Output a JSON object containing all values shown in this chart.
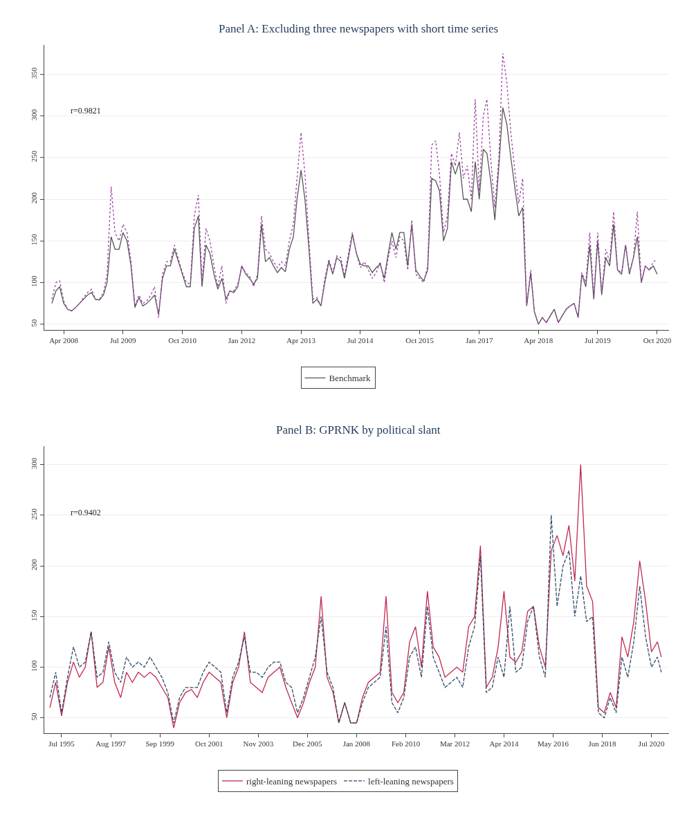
{
  "chart_data": [
    {
      "type": "line",
      "title": "Panel A: Excluding three newspapers with short time series",
      "annotations": [
        "r=0.9821"
      ],
      "grid": "y",
      "legend": "bottom",
      "marker": "none",
      "x": [
        "2008-01",
        "2008-02",
        "2008-03",
        "2008-04",
        "2008-05",
        "2008-06",
        "2008-07",
        "2008-08",
        "2008-09",
        "2008-10",
        "2008-11",
        "2008-12",
        "2009-01",
        "2009-02",
        "2009-03",
        "2009-04",
        "2009-05",
        "2009-06",
        "2009-07",
        "2009-08",
        "2009-09",
        "2009-10",
        "2009-11",
        "2009-12",
        "2010-01",
        "2010-02",
        "2010-03",
        "2010-04",
        "2010-05",
        "2010-06",
        "2010-07",
        "2010-08",
        "2010-09",
        "2010-10",
        "2010-11",
        "2010-12",
        "2011-01",
        "2011-02",
        "2011-03",
        "2011-04",
        "2011-05",
        "2011-06",
        "2011-07",
        "2011-08",
        "2011-09",
        "2011-10",
        "2011-11",
        "2011-12",
        "2012-01",
        "2012-02",
        "2012-03",
        "2012-04",
        "2012-05",
        "2012-06",
        "2012-07",
        "2012-08",
        "2012-09",
        "2012-10",
        "2012-11",
        "2012-12",
        "2013-01",
        "2013-02",
        "2013-03",
        "2013-04",
        "2013-05",
        "2013-06",
        "2013-07",
        "2013-08",
        "2013-09",
        "2013-10",
        "2013-11",
        "2013-12",
        "2014-01",
        "2014-02",
        "2014-03",
        "2014-04",
        "2014-05",
        "2014-06",
        "2014-07",
        "2014-08",
        "2014-09",
        "2014-10",
        "2014-11",
        "2014-12",
        "2015-01",
        "2015-02",
        "2015-03",
        "2015-04",
        "2015-05",
        "2015-06",
        "2015-07",
        "2015-08",
        "2015-09",
        "2015-10",
        "2015-11",
        "2015-12",
        "2016-01",
        "2016-02",
        "2016-03",
        "2016-04",
        "2016-05",
        "2016-06",
        "2016-07",
        "2016-08",
        "2016-09",
        "2016-10",
        "2016-11",
        "2016-12",
        "2017-01",
        "2017-02",
        "2017-03",
        "2017-04",
        "2017-05",
        "2017-06",
        "2017-07",
        "2017-08",
        "2017-09",
        "2017-10",
        "2017-11",
        "2017-12",
        "2018-01",
        "2018-02",
        "2018-03",
        "2018-04",
        "2018-05",
        "2018-06",
        "2018-07",
        "2018-08",
        "2018-09",
        "2018-10",
        "2018-11",
        "2018-12",
        "2019-01",
        "2019-02",
        "2019-03",
        "2019-04",
        "2019-05",
        "2019-06",
        "2019-07",
        "2019-08",
        "2019-09",
        "2019-10",
        "2019-11",
        "2019-12",
        "2020-01",
        "2020-02",
        "2020-03",
        "2020-04",
        "2020-05",
        "2020-06",
        "2020-07",
        "2020-08",
        "2020-09",
        "2020-10"
      ],
      "series": [
        {
          "name": "Benchmark",
          "color": "#555555",
          "line_style": "solid",
          "values": [
            75,
            90,
            95,
            75,
            68,
            66,
            70,
            75,
            80,
            85,
            88,
            80,
            79,
            85,
            100,
            155,
            140,
            140,
            160,
            150,
            120,
            70,
            82,
            72,
            75,
            80,
            85,
            62,
            105,
            120,
            120,
            140,
            125,
            110,
            95,
            95,
            165,
            180,
            95,
            145,
            135,
            110,
            92,
            105,
            80,
            90,
            88,
            95,
            120,
            110,
            105,
            98,
            105,
            170,
            125,
            130,
            120,
            112,
            118,
            113,
            140,
            155,
            200,
            235,
            200,
            140,
            75,
            80,
            72,
            100,
            125,
            110,
            130,
            125,
            105,
            130,
            158,
            135,
            122,
            120,
            120,
            112,
            118,
            122,
            105,
            135,
            160,
            140,
            160,
            160,
            120,
            170,
            115,
            108,
            102,
            115,
            225,
            222,
            210,
            150,
            165,
            245,
            230,
            245,
            200,
            200,
            185,
            245,
            200,
            260,
            255,
            220,
            175,
            240,
            310,
            290,
            250,
            215,
            180,
            190,
            72,
            112,
            65,
            50,
            58,
            52,
            60,
            68,
            52,
            60,
            68,
            72,
            75,
            58,
            110,
            95,
            145,
            80,
            150,
            85,
            130,
            120,
            170,
            115,
            110,
            145,
            110,
            130,
            155,
            100,
            120,
            115,
            120,
            110
          ]
        },
        {
          "color": "#9b3fa3",
          "line_style": "dotted",
          "values": [
            80,
            100,
            102,
            78,
            68,
            66,
            70,
            75,
            82,
            88,
            92,
            80,
            80,
            88,
            110,
            215,
            160,
            150,
            170,
            160,
            125,
            72,
            85,
            75,
            78,
            85,
            95,
            58,
            110,
            125,
            125,
            145,
            128,
            112,
            100,
            98,
            180,
            205,
            100,
            165,
            150,
            120,
            95,
            120,
            75,
            90,
            90,
            98,
            118,
            112,
            108,
            95,
            110,
            180,
            140,
            135,
            125,
            118,
            125,
            120,
            150,
            170,
            225,
            280,
            230,
            150,
            80,
            82,
            72,
            105,
            128,
            112,
            132,
            130,
            108,
            135,
            160,
            135,
            118,
            125,
            115,
            105,
            112,
            125,
            100,
            130,
            150,
            130,
            155,
            150,
            115,
            175,
            110,
            105,
            100,
            120,
            265,
            270,
            230,
            160,
            180,
            255,
            240,
            280,
            225,
            240,
            200,
            320,
            210,
            300,
            320,
            245,
            190,
            250,
            375,
            340,
            280,
            235,
            195,
            225,
            72,
            115,
            65,
            50,
            58,
            52,
            60,
            68,
            52,
            60,
            68,
            72,
            75,
            58,
            112,
            100,
            160,
            82,
            160,
            88,
            140,
            125,
            185,
            115,
            112,
            145,
            112,
            130,
            185,
            100,
            120,
            115,
            125,
            128
          ]
        }
      ],
      "xlim": [
        "2007-11",
        "2021-01"
      ],
      "xticks": [
        {
          "value": "2008-04",
          "label": "Apr 2008"
        },
        {
          "value": "2009-07",
          "label": "Jul 2009"
        },
        {
          "value": "2010-10",
          "label": "Oct 2010"
        },
        {
          "value": "2012-01",
          "label": "Jan 2012"
        },
        {
          "value": "2013-04",
          "label": "Apr 2013"
        },
        {
          "value": "2014-07",
          "label": "Jul 2014"
        },
        {
          "value": "2015-10",
          "label": "Oct 2015"
        },
        {
          "value": "2017-01",
          "label": "Jan 2017"
        },
        {
          "value": "2018-04",
          "label": "Apr 2018"
        },
        {
          "value": "2019-07",
          "label": "Jul 2019"
        },
        {
          "value": "2020-10",
          "label": "Oct 2020"
        }
      ],
      "ylim": [
        43,
        385
      ],
      "yticks": [
        50,
        100,
        150,
        200,
        250,
        300,
        350
      ]
    },
    {
      "type": "line",
      "title": "Panel B: GPRNK by political slant",
      "annotations": [
        "r=0.9402"
      ],
      "grid": "y",
      "legend": "bottom",
      "marker": "none",
      "x": [
        "1995-01",
        "1995-04",
        "1995-07",
        "1995-10",
        "1996-01",
        "1996-04",
        "1996-07",
        "1996-10",
        "1997-01",
        "1997-04",
        "1997-07",
        "1997-10",
        "1998-01",
        "1998-04",
        "1998-07",
        "1998-10",
        "1999-01",
        "1999-04",
        "1999-07",
        "1999-10",
        "2000-01",
        "2000-04",
        "2000-07",
        "2000-10",
        "2001-01",
        "2001-04",
        "2001-07",
        "2001-10",
        "2002-01",
        "2002-04",
        "2002-07",
        "2002-10",
        "2003-01",
        "2003-04",
        "2003-07",
        "2003-10",
        "2004-01",
        "2004-04",
        "2004-07",
        "2004-10",
        "2005-01",
        "2005-04",
        "2005-07",
        "2005-10",
        "2006-01",
        "2006-04",
        "2006-07",
        "2006-10",
        "2007-01",
        "2007-04",
        "2007-07",
        "2007-10",
        "2008-01",
        "2008-04",
        "2008-07",
        "2008-10",
        "2009-01",
        "2009-04",
        "2009-07",
        "2009-10",
        "2010-01",
        "2010-04",
        "2010-07",
        "2010-10",
        "2011-01",
        "2011-04",
        "2011-07",
        "2011-10",
        "2012-01",
        "2012-04",
        "2012-07",
        "2012-10",
        "2013-01",
        "2013-04",
        "2013-07",
        "2013-10",
        "2014-01",
        "2014-04",
        "2014-07",
        "2014-10",
        "2015-01",
        "2015-04",
        "2015-07",
        "2015-10",
        "2016-01",
        "2016-04",
        "2016-07",
        "2016-10",
        "2017-01",
        "2017-04",
        "2017-07",
        "2017-10",
        "2018-01",
        "2018-04",
        "2018-07",
        "2018-10",
        "2019-01",
        "2019-04",
        "2019-07",
        "2019-10",
        "2020-01",
        "2020-04",
        "2020-07",
        "2020-10",
        "2020-12"
      ],
      "series": [
        {
          "name": "right-leaning newspapers",
          "color": "#c0284d",
          "line_style": "solid",
          "values": [
            60,
            85,
            52,
            85,
            105,
            90,
            100,
            135,
            80,
            85,
            120,
            85,
            70,
            95,
            85,
            95,
            90,
            95,
            90,
            80,
            70,
            40,
            65,
            75,
            78,
            70,
            85,
            95,
            90,
            85,
            50,
            85,
            100,
            135,
            85,
            80,
            75,
            90,
            95,
            100,
            80,
            65,
            50,
            65,
            85,
            100,
            170,
            90,
            75,
            45,
            65,
            45,
            45,
            70,
            85,
            90,
            95,
            170,
            75,
            65,
            75,
            125,
            140,
            100,
            175,
            120,
            110,
            90,
            95,
            100,
            95,
            140,
            150,
            220,
            80,
            90,
            120,
            175,
            110,
            105,
            115,
            155,
            160,
            120,
            100,
            215,
            230,
            210,
            240,
            185,
            300,
            180,
            165,
            60,
            55,
            75,
            60,
            130,
            110,
            145,
            205,
            165,
            115,
            125,
            110
          ]
        },
        {
          "name": "left-leaning newspapers",
          "color": "#2f4a6b",
          "line_style": "dashed",
          "values": [
            70,
            95,
            55,
            90,
            120,
            100,
            105,
            135,
            90,
            95,
            125,
            95,
            85,
            110,
            100,
            105,
            100,
            110,
            100,
            90,
            75,
            45,
            70,
            80,
            80,
            80,
            95,
            105,
            100,
            95,
            55,
            90,
            105,
            130,
            95,
            95,
            90,
            100,
            105,
            105,
            85,
            80,
            55,
            70,
            90,
            110,
            150,
            95,
            80,
            45,
            65,
            45,
            45,
            65,
            80,
            85,
            90,
            140,
            65,
            55,
            70,
            110,
            120,
            90,
            160,
            110,
            95,
            80,
            85,
            90,
            80,
            120,
            140,
            210,
            75,
            80,
            110,
            90,
            160,
            95,
            100,
            145,
            160,
            110,
            90,
            250,
            160,
            200,
            215,
            150,
            190,
            145,
            150,
            55,
            50,
            70,
            55,
            110,
            90,
            125,
            180,
            130,
            100,
            110,
            95
          ]
        }
      ],
      "xlim": [
        "1994-10",
        "2021-04"
      ],
      "xticks": [
        {
          "value": "1995-07",
          "label": "Jul 1995"
        },
        {
          "value": "1997-08",
          "label": "Aug 1997"
        },
        {
          "value": "1999-09",
          "label": "Sep 1999"
        },
        {
          "value": "2001-10",
          "label": "Oct 2001"
        },
        {
          "value": "2003-11",
          "label": "Nov 2003"
        },
        {
          "value": "2005-12",
          "label": "Dec 2005"
        },
        {
          "value": "2008-01",
          "label": "Jan 2008"
        },
        {
          "value": "2010-02",
          "label": "Feb 2010"
        },
        {
          "value": "2012-03",
          "label": "Mar 2012"
        },
        {
          "value": "2014-04",
          "label": "Apr 2014"
        },
        {
          "value": "2016-05",
          "label": "May 2016"
        },
        {
          "value": "2018-06",
          "label": "Jun 2018"
        },
        {
          "value": "2020-07",
          "label": "Jul 2020"
        }
      ],
      "ylim": [
        35,
        318
      ],
      "yticks": [
        50,
        100,
        150,
        200,
        250,
        300
      ]
    }
  ]
}
